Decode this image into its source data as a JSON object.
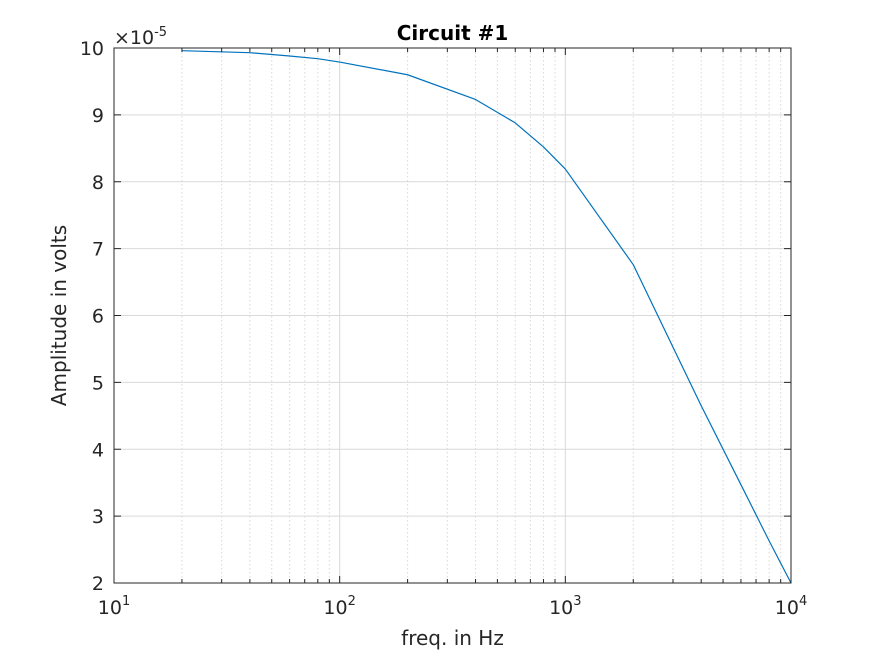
{
  "chart_data": {
    "type": "line",
    "title": "Circuit #1",
    "xlabel": "freq. in Hz",
    "ylabel": "Amplitude in volts",
    "x_scale": "log",
    "xlim": [
      10,
      10000
    ],
    "ylim": [
      2,
      10
    ],
    "y_exponent_base": "×10",
    "y_exponent_power": "-5",
    "x_ticks": [
      {
        "value": 10,
        "base": "10",
        "exp": "1"
      },
      {
        "value": 100,
        "base": "10",
        "exp": "2"
      },
      {
        "value": 1000,
        "base": "10",
        "exp": "3"
      },
      {
        "value": 10000,
        "base": "10",
        "exp": "4"
      }
    ],
    "y_ticks": [
      {
        "value": 2,
        "label": "2"
      },
      {
        "value": 3,
        "label": "3"
      },
      {
        "value": 4,
        "label": "4"
      },
      {
        "value": 5,
        "label": "5"
      },
      {
        "value": 6,
        "label": "6"
      },
      {
        "value": 7,
        "label": "7"
      },
      {
        "value": 8,
        "label": "8"
      },
      {
        "value": 9,
        "label": "9"
      },
      {
        "value": 10,
        "label": "10"
      }
    ],
    "grid": true,
    "minor_grid": true,
    "colors": {
      "line": "#0072BD",
      "axis": "#262626",
      "grid": "#d9d9d9"
    },
    "series": [
      {
        "x": [
          20,
          40,
          60,
          80,
          100,
          200,
          400,
          600,
          800,
          1000,
          2000,
          4000,
          6000,
          8000,
          10000
        ],
        "values": [
          9.96,
          9.93,
          9.88,
          9.84,
          9.79,
          9.6,
          9.23,
          8.88,
          8.52,
          8.19,
          6.76,
          4.65,
          3.47,
          2.63,
          2.0
        ]
      }
    ]
  }
}
